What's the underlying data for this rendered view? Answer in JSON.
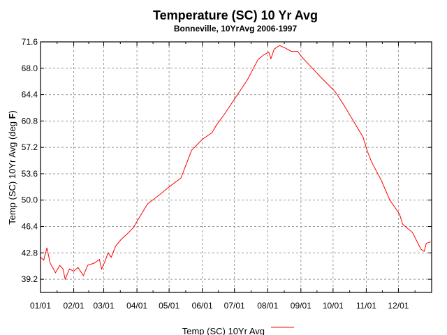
{
  "chart_data": {
    "type": "line",
    "title": "Temperature (SC) 10 Yr Avg",
    "subtitle": "Bonneville, 10YrAvg 2006-1997",
    "xlabel": "",
    "ylabel_prefix": "Temp (SC) 10Yr Avg (deg ",
    "ylabel_unit": "F",
    "ylabel_suffix": ")",
    "xlim": [
      0,
      365
    ],
    "ylim": [
      37.4,
      71.6
    ],
    "grid": true,
    "legend_position": "bottom-center",
    "x_unit": "day of year",
    "x_ticks": [
      {
        "value": 0,
        "label": "01/01"
      },
      {
        "value": 31,
        "label": "02/01"
      },
      {
        "value": 59,
        "label": "03/01"
      },
      {
        "value": 90,
        "label": "04/01"
      },
      {
        "value": 120,
        "label": "05/01"
      },
      {
        "value": 151,
        "label": "06/01"
      },
      {
        "value": 181,
        "label": "07/01"
      },
      {
        "value": 212,
        "label": "08/01"
      },
      {
        "value": 243,
        "label": "09/01"
      },
      {
        "value": 273,
        "label": "10/01"
      },
      {
        "value": 304,
        "label": "11/01"
      },
      {
        "value": 334,
        "label": "12/01"
      }
    ],
    "y_ticks": [
      {
        "value": 71.6,
        "label": "71.6"
      },
      {
        "value": 68.0,
        "label": "68.0"
      },
      {
        "value": 64.4,
        "label": "64.4"
      },
      {
        "value": 60.8,
        "label": "60.8"
      },
      {
        "value": 57.2,
        "label": "57.2"
      },
      {
        "value": 53.6,
        "label": "53.6"
      },
      {
        "value": 50.0,
        "label": "50.0"
      },
      {
        "value": 46.4,
        "label": "46.4"
      },
      {
        "value": 42.8,
        "label": "42.8"
      },
      {
        "value": 39.2,
        "label": "39.2"
      }
    ],
    "series": [
      {
        "name": "Temp (SC) 10Yr Avg",
        "color": "#ff0000",
        "x": [
          0,
          3,
          6,
          9,
          14,
          18,
          21,
          23,
          27,
          31,
          35,
          40,
          44,
          50,
          55,
          57,
          60,
          63,
          66,
          70,
          75,
          81,
          87,
          90,
          95,
          100,
          110,
          120,
          131,
          141,
          151,
          160,
          164,
          171,
          182,
          193,
          203,
          208,
          213,
          215,
          218,
          223,
          228,
          234,
          240,
          244,
          253,
          262,
          275,
          283,
          292,
          301,
          305,
          309,
          318,
          326,
          335,
          338,
          347,
          355,
          358,
          360,
          364
        ],
        "y": [
          42.2,
          41.8,
          43.5,
          41.4,
          40.1,
          41.1,
          40.6,
          39.2,
          40.6,
          40.3,
          40.8,
          39.7,
          41.1,
          41.4,
          41.9,
          40.6,
          41.6,
          42.8,
          42.2,
          43.7,
          44.6,
          45.4,
          46.3,
          47.1,
          48.3,
          49.5,
          50.6,
          51.8,
          53.0,
          56.8,
          58.3,
          59.2,
          60.2,
          61.6,
          64.0,
          66.4,
          69.2,
          69.8,
          70.2,
          69.3,
          70.6,
          71.1,
          70.8,
          70.3,
          70.3,
          69.5,
          68.1,
          66.7,
          64.8,
          63.0,
          60.8,
          58.6,
          56.7,
          55.2,
          52.7,
          50.0,
          48.1,
          46.7,
          45.6,
          43.3,
          43.0,
          44.1,
          44.3
        ]
      }
    ]
  }
}
